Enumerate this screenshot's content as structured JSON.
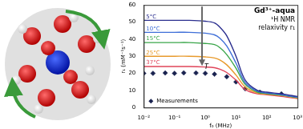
{
  "chart_data": {
    "type": "line",
    "title": "Gd³⁺-aqua",
    "annotations": [
      "¹H NMR",
      "relaxivity r₁",
      "T"
    ],
    "x_label": "f₀ (MHz)",
    "y_label": "r₁ (mM⁻¹s⁻¹)",
    "log": "x",
    "xlim": [
      0.01,
      1000
    ],
    "xticks": [
      {
        "value": 0.01,
        "label": "10⁻²"
      },
      {
        "value": 0.1,
        "label": "10⁻¹"
      },
      {
        "value": 1,
        "label": "10⁰"
      },
      {
        "value": 10,
        "label": "10¹"
      },
      {
        "value": 100,
        "label": "10²"
      },
      {
        "value": 1000,
        "label": "10³"
      }
    ],
    "ylim": [
      0,
      60
    ],
    "yticks": [
      0,
      10,
      20,
      30,
      40,
      50,
      60
    ],
    "grid": false,
    "legend": "lower left",
    "series": [
      {
        "name": "5°C",
        "color": "#2b2f8f",
        "type": "line",
        "x": [
          0.01,
          0.03,
          0.1,
          0.3,
          1,
          2,
          3,
          5,
          10,
          20,
          50,
          100,
          300,
          1000
        ],
        "values": [
          51,
          51,
          51,
          51,
          50.5,
          49.5,
          47,
          42,
          30,
          16,
          10,
          9,
          8,
          6.5
        ]
      },
      {
        "name": "10°C",
        "color": "#3f6fd8",
        "type": "line",
        "x": [
          0.01,
          0.03,
          0.1,
          0.3,
          1,
          2,
          3,
          5,
          10,
          20,
          50,
          100,
          300,
          1000
        ],
        "values": [
          44,
          44,
          44,
          44,
          43.5,
          42.5,
          40.5,
          36,
          26,
          14.5,
          9.5,
          8.5,
          7.5,
          6
        ]
      },
      {
        "name": "15°C",
        "color": "#3aa64a",
        "type": "line",
        "x": [
          0.01,
          0.03,
          0.1,
          0.3,
          1,
          2,
          3,
          5,
          10,
          20,
          50,
          100,
          300,
          1000
        ],
        "values": [
          38,
          38,
          38,
          38,
          37.5,
          36.8,
          35,
          31,
          23,
          13.5,
          9,
          8.2,
          7.2,
          5.8
        ]
      },
      {
        "name": "25°C",
        "color": "#e89a2c",
        "type": "line",
        "x": [
          0.01,
          0.03,
          0.1,
          0.3,
          1,
          2,
          3,
          5,
          10,
          20,
          50,
          100,
          300,
          1000
        ],
        "values": [
          30,
          30,
          30,
          30,
          29.6,
          29,
          27.8,
          25,
          19,
          12,
          8.5,
          7.8,
          7,
          5.5
        ]
      },
      {
        "name": "37°C",
        "color": "#e0455a",
        "type": "line",
        "x": [
          0.01,
          0.03,
          0.1,
          0.3,
          1,
          2,
          3,
          5,
          10,
          20,
          50,
          100,
          300,
          1000
        ],
        "values": [
          24,
          24,
          24,
          24,
          23.7,
          23.3,
          22.4,
          20.5,
          16,
          10.5,
          8,
          7.5,
          6.5,
          5.2
        ]
      },
      {
        "name": "Measurements",
        "color": "#1a2350",
        "type": "scatter",
        "marker": "diamond",
        "x": [
          0.01,
          0.02,
          0.05,
          0.1,
          0.2,
          0.5,
          1,
          2,
          5,
          10,
          20,
          60,
          300
        ],
        "values": [
          20,
          20,
          20.2,
          20,
          20.3,
          20.2,
          20,
          19.5,
          18,
          15,
          11,
          9,
          8
        ]
      }
    ]
  }
}
